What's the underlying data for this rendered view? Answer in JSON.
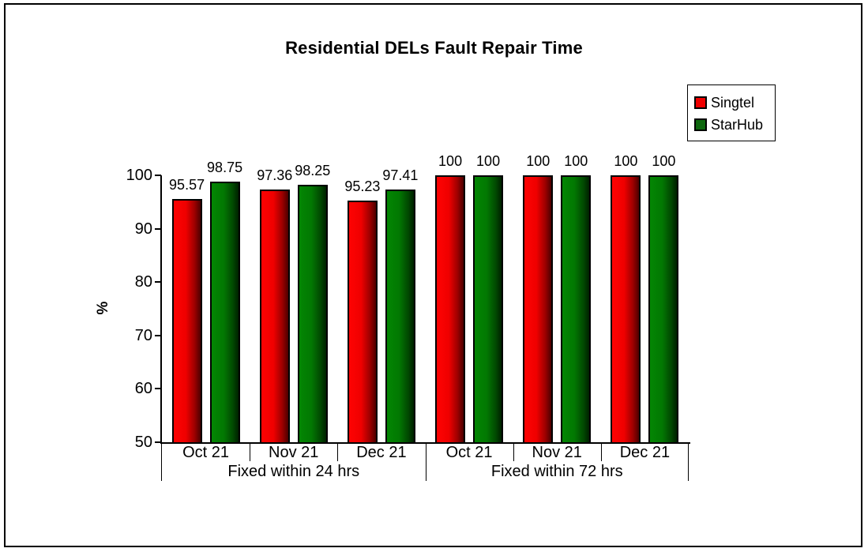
{
  "window": {
    "background": "#ffffff",
    "border_color": "#000000"
  },
  "chart_data": {
    "type": "bar",
    "title": "Residential DELs Fault Repair Time",
    "ylabel": "%",
    "ylim": [
      50,
      100
    ],
    "yticks": [
      50,
      60,
      70,
      80,
      90,
      100
    ],
    "grid": false,
    "legend_position": "top-right",
    "data_labels": true,
    "groups": [
      {
        "label": "Fixed within 24 hrs",
        "span": 3
      },
      {
        "label": "Fixed within 72 hrs",
        "span": 3
      }
    ],
    "categories": [
      "Oct 21",
      "Nov 21",
      "Dec 21",
      "Oct 21",
      "Nov 21",
      "Dec 21"
    ],
    "series": [
      {
        "name": "Singtel",
        "color": "#ee0000",
        "values": [
          95.57,
          97.36,
          95.23,
          100,
          100,
          100
        ]
      },
      {
        "name": "StarHub",
        "color": "#0e670e",
        "values": [
          98.75,
          98.25,
          97.41,
          100,
          100,
          100
        ]
      }
    ]
  }
}
